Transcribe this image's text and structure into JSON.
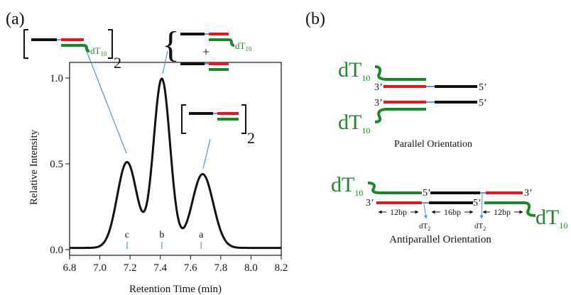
{
  "panels": {
    "a": "(a)",
    "b": "(b)"
  },
  "colors": {
    "black_strand": "#111111",
    "red_strand": "#e8141b",
    "green_strand": "#1a8a28",
    "linker": "#5a9bd5",
    "leader": "#4f92c9"
  },
  "chart_data": {
    "type": "line",
    "xlabel": "Retention Time (min)",
    "ylabel": "Relative Intensity",
    "xlim": [
      6.8,
      8.2
    ],
    "ylim": [
      0.0,
      1.0
    ],
    "xticks": [
      6.8,
      7.0,
      7.2,
      7.4,
      7.6,
      7.8,
      8.0,
      8.2
    ],
    "xtick_labels": [
      "6.8",
      "7.0",
      "7.2",
      "7.4",
      "7.6",
      "7.8",
      "8.0",
      "8.2"
    ],
    "yticks": [
      0.0,
      0.5,
      1.0
    ],
    "ytick_labels": [
      "0.0",
      "0.5",
      "1.0"
    ],
    "peaks": [
      {
        "label": "c",
        "x": 7.18,
        "height": 0.5,
        "width": 0.065
      },
      {
        "label": "b",
        "x": 7.41,
        "height": 0.985,
        "width": 0.055
      },
      {
        "label": "a",
        "x": 7.68,
        "height": 0.43,
        "width": 0.07
      }
    ],
    "baseline": 0.01,
    "markers": [
      {
        "label": "c",
        "x": 7.18
      },
      {
        "label": "b",
        "x": 7.41
      },
      {
        "label": "a",
        "x": 7.67
      }
    ],
    "annotations": {
      "left_subscript": "2",
      "right_subscript": "2",
      "plus": "+",
      "dT_main": "dT",
      "dT_sub": "10"
    }
  },
  "diagram_b": {
    "parallel": {
      "caption": "Parallel Orientation",
      "prime3_top": "3’",
      "prime5_top": "5’",
      "prime3_bottom": "3’",
      "prime5_bottom": "5’",
      "dT_main": "dT",
      "dT_sub": "10"
    },
    "antiparallel": {
      "caption": "Antiparallel Orientation",
      "prime5_mid": "5’",
      "prime3_right": "3’",
      "prime3_left": "3’",
      "prime5_mid_bottom": "5’",
      "dT_main": "dT",
      "dT_sub": "10",
      "len_left": "12bp",
      "len_mid": "16bp",
      "len_right": "12bp",
      "dT2_main": "dT",
      "dT2_sub": "2"
    }
  }
}
